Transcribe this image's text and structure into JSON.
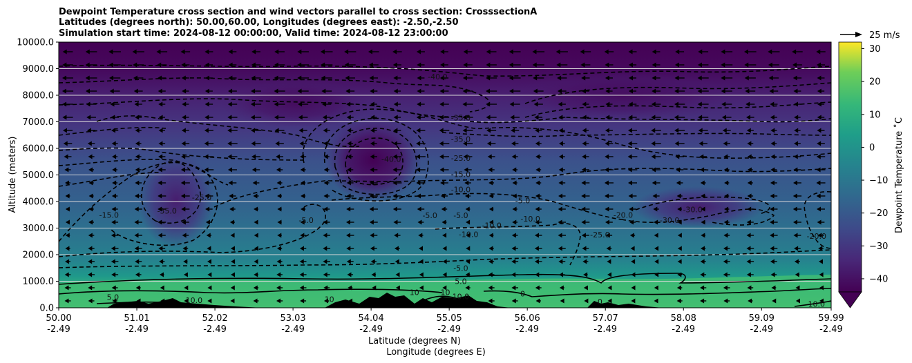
{
  "chart_data": {
    "type": "heatmap",
    "title_lines": [
      "Dewpoint Temperature cross section and wind vectors parallel to cross section: CrosssectionA",
      "Latitudes (degrees north): 50.00,60.00, Longitudes (degrees east): -2.50,-2.50",
      "Simulation start time: 2024-08-12 00:00:00, Valid time: 2024-08-12 23:00:00"
    ],
    "xlabel_lines": [
      "Latitude (degrees N)",
      "Longitude (degrees E)"
    ],
    "ylabel": "Altitude (meters)",
    "x_ticks": [
      {
        "lat": "50.00",
        "lon": "-2.49",
        "value": 50.0
      },
      {
        "lat": "51.01",
        "lon": "-2.49",
        "value": 51.01
      },
      {
        "lat": "52.02",
        "lon": "-2.49",
        "value": 52.02
      },
      {
        "lat": "53.03",
        "lon": "-2.49",
        "value": 53.03
      },
      {
        "lat": "54.04",
        "lon": "-2.49",
        "value": 54.04
      },
      {
        "lat": "55.05",
        "lon": "-2.49",
        "value": 55.05
      },
      {
        "lat": "56.06",
        "lon": "-2.49",
        "value": 56.06
      },
      {
        "lat": "57.07",
        "lon": "-2.49",
        "value": 57.07
      },
      {
        "lat": "58.08",
        "lon": "-2.49",
        "value": 58.08
      },
      {
        "lat": "59.09",
        "lon": "-2.49",
        "value": 59.09
      },
      {
        "lat": "59.99",
        "lon": "-2.49",
        "value": 59.99
      }
    ],
    "xlim": [
      50.0,
      59.99
    ],
    "y_ticks": [
      "0.0",
      "1000.0",
      "2000.0",
      "3000.0",
      "4000.0",
      "5000.0",
      "6000.0",
      "7000.0",
      "8000.0",
      "9000.0",
      "10000.0"
    ],
    "ylim": [
      0,
      10000
    ],
    "grid": "horizontal",
    "colorbar": {
      "label": "Dewpoint Temperature ˚C",
      "ticks": [
        "30",
        "20",
        "10",
        "0",
        "−10",
        "−20",
        "−30",
        "−40"
      ],
      "range": [
        -44,
        32
      ],
      "extend": "min",
      "colormap": "viridis"
    },
    "wind_key": {
      "label": "25 m/s",
      "value": 25
    },
    "vectors": "wind parallel to cross section, mostly pointing toward lower latitude",
    "contour_labels": [
      {
        "text": "-40.0",
        "x": 54.9,
        "y": 8700
      },
      {
        "text": "-35.0",
        "x": 55.2,
        "y": 7150
      },
      {
        "text": "-35.0",
        "x": 55.2,
        "y": 6350
      },
      {
        "text": "-40.0",
        "x": 54.3,
        "y": 5600
      },
      {
        "text": "-25.0",
        "x": 55.2,
        "y": 5630
      },
      {
        "text": "-15.0",
        "x": 55.2,
        "y": 5030
      },
      {
        "text": "-10.0",
        "x": 55.2,
        "y": 4460
      },
      {
        "text": "-15.0",
        "x": 50.65,
        "y": 3500
      },
      {
        "text": "-35.0",
        "x": 51.4,
        "y": 3650
      },
      {
        "text": "-25.0",
        "x": 51.85,
        "y": 4150
      },
      {
        "text": "-5.0",
        "x": 53.2,
        "y": 3300
      },
      {
        "text": "-5.0",
        "x": 54.8,
        "y": 3480
      },
      {
        "text": "-5.0",
        "x": 55.2,
        "y": 3480
      },
      {
        "text": "-10.0",
        "x": 55.3,
        "y": 2770
      },
      {
        "text": "-10.0",
        "x": 55.6,
        "y": 3100
      },
      {
        "text": "-5.0",
        "x": 56.0,
        "y": 4040
      },
      {
        "text": "-10.0",
        "x": 56.1,
        "y": 3350
      },
      {
        "text": "-25.0",
        "x": 57.0,
        "y": 2750
      },
      {
        "text": "-20.0",
        "x": 57.3,
        "y": 3500
      },
      {
        "text": "-30.0",
        "x": 57.9,
        "y": 3300
      },
      {
        "text": "-30.0",
        "x": 58.2,
        "y": 3700
      },
      {
        "text": "-20.0",
        "x": 59.8,
        "y": 2700
      },
      {
        "text": "-5.0",
        "x": 55.2,
        "y": 1500
      },
      {
        "text": "5.0",
        "x": 55.2,
        "y": 1000
      },
      {
        "text": "5.0",
        "x": 50.7,
        "y": 400
      },
      {
        "text": "10.0",
        "x": 51.75,
        "y": 280
      },
      {
        "text": "10",
        "x": 53.5,
        "y": 330
      },
      {
        "text": "10",
        "x": 54.6,
        "y": 580
      },
      {
        "text": "10",
        "x": 55.0,
        "y": 580
      },
      {
        "text": "10.0",
        "x": 55.2,
        "y": 430
      },
      {
        "text": "0",
        "x": 56.0,
        "y": 530
      },
      {
        "text": "0",
        "x": 57.0,
        "y": 230
      },
      {
        "text": "10.0",
        "x": 59.8,
        "y": 140
      }
    ]
  }
}
